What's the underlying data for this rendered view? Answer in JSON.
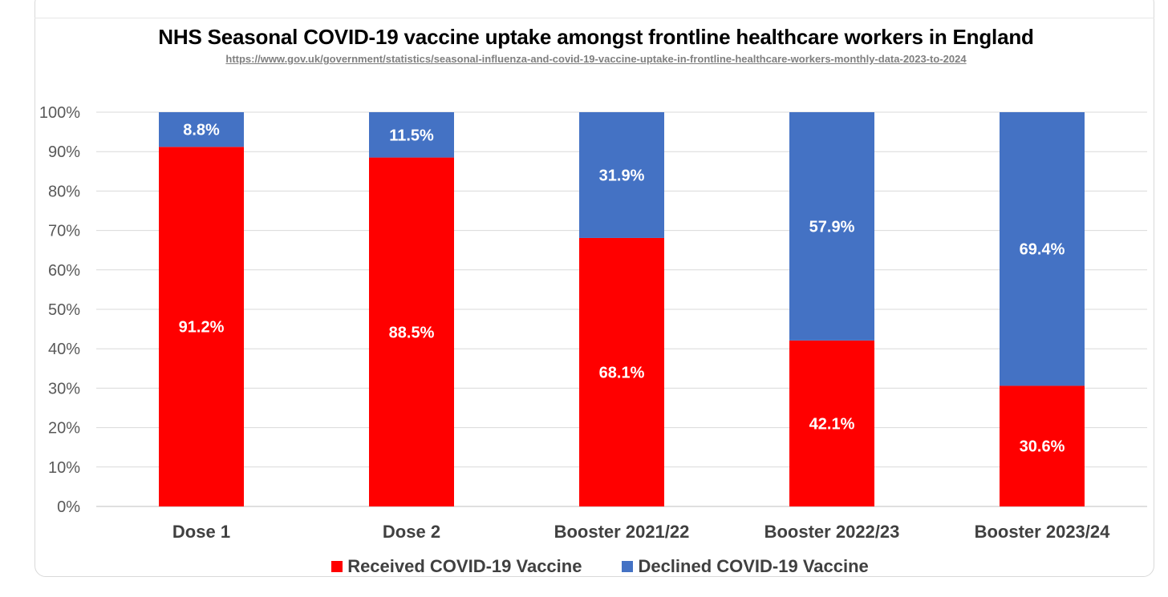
{
  "chart_data": {
    "type": "bar",
    "stacked": true,
    "title": "NHS Seasonal COVID-19 vaccine uptake amongst frontline healthcare workers in England",
    "subtitle": "https://www.gov.uk/government/statistics/seasonal-influenza-and-covid-19-vaccine-uptake-in-frontline-healthcare-workers-monthly-data-2023-to-2024",
    "xlabel": "",
    "ylabel": "",
    "ylim": [
      0,
      100
    ],
    "yticks": [
      "0%",
      "10%",
      "20%",
      "30%",
      "40%",
      "50%",
      "60%",
      "70%",
      "80%",
      "90%",
      "100%"
    ],
    "grid": true,
    "legend_position": "bottom",
    "categories": [
      "Dose 1",
      "Dose 2",
      "Booster 2021/22",
      "Booster 2022/23",
      "Booster 2023/24"
    ],
    "series": [
      {
        "name": "Received COVID-19 Vaccine",
        "color": "#ff0000",
        "values": [
          91.2,
          88.5,
          68.1,
          42.1,
          30.6
        ],
        "labels": [
          "91.2%",
          "88.5%",
          "68.1%",
          "42.1%",
          "30.6%"
        ]
      },
      {
        "name": "Declined COVID-19 Vaccine",
        "color": "#4472c4",
        "values": [
          8.8,
          11.5,
          31.9,
          57.9,
          69.4
        ],
        "labels": [
          "8.8%",
          "11.5%",
          "31.9%",
          "57.9%",
          "69.4%"
        ]
      }
    ]
  }
}
